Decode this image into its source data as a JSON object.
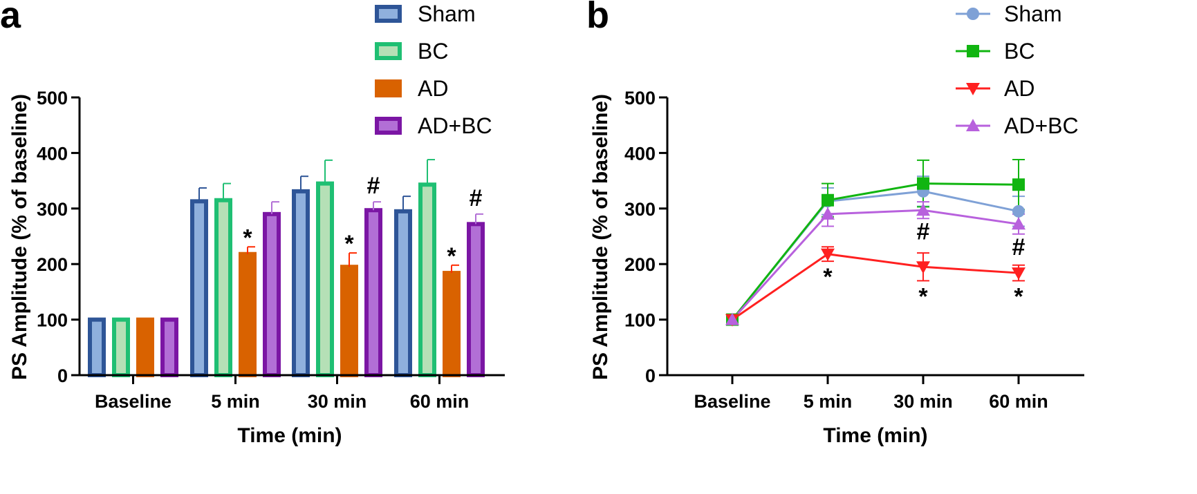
{
  "colors": {
    "sham": "#2e5597",
    "sham_light": "#8fb0dd",
    "sham_line": "#7fa1d6",
    "bc": "#1fbf73",
    "bc_light": "#b5e0b6",
    "bc_line": "#11b511",
    "ad": "#d96200",
    "ad_err": "#ff2a00",
    "ad_line": "#ff2020",
    "adbc": "#7b16a4",
    "adbc_light": "#b26fd6",
    "adbc_line": "#b861dd"
  },
  "chart_data": [
    {
      "panel": "a",
      "type": "bar",
      "categories": [
        "Baseline",
        "5 min",
        "30 min",
        "60 min"
      ],
      "xlabel": "Time (min)",
      "ylabel": "PS Amplitude (% of baseline)",
      "ylim": [
        0,
        500
      ],
      "yticks": [
        "0",
        "100",
        "200",
        "300",
        "400",
        "500"
      ],
      "legend_position": "top-right",
      "series": [
        {
          "name": "Sham",
          "values": [
            100,
            313,
            331,
            295
          ],
          "errors": [
            0,
            24,
            27,
            27
          ]
        },
        {
          "name": "BC",
          "values": [
            100,
            315,
            345,
            343
          ],
          "errors": [
            0,
            30,
            42,
            45
          ]
        },
        {
          "name": "AD",
          "values": [
            100,
            218,
            195,
            184
          ],
          "errors": [
            0,
            13,
            25,
            14
          ]
        },
        {
          "name": "AD+BC",
          "values": [
            100,
            290,
            297,
            272
          ],
          "errors": [
            0,
            22,
            15,
            18
          ]
        }
      ],
      "annotations": [
        {
          "text": "*",
          "category": "5 min",
          "series": "AD"
        },
        {
          "text": "*",
          "category": "30 min",
          "series": "AD"
        },
        {
          "text": "#",
          "category": "30 min",
          "series": "AD+BC"
        },
        {
          "text": "*",
          "category": "60 min",
          "series": "AD"
        },
        {
          "text": "#",
          "category": "60 min",
          "series": "AD+BC"
        }
      ]
    },
    {
      "panel": "b",
      "type": "line",
      "categories": [
        "Baseline",
        "5 min",
        "30 min",
        "60 min"
      ],
      "xlabel": "Time (min)",
      "ylabel": "PS Amplitude (% of baseline)",
      "ylim": [
        0,
        500
      ],
      "yticks": [
        "0",
        "100",
        "200",
        "300",
        "400",
        "500"
      ],
      "legend_position": "top-right",
      "series": [
        {
          "name": "Sham",
          "marker": "circle",
          "values": [
            100,
            313,
            331,
            295
          ],
          "errors": [
            0,
            24,
            27,
            27
          ]
        },
        {
          "name": "BC",
          "marker": "square",
          "values": [
            100,
            315,
            345,
            343
          ],
          "errors": [
            0,
            30,
            42,
            45
          ]
        },
        {
          "name": "AD",
          "marker": "triangle-down",
          "values": [
            100,
            218,
            195,
            184
          ],
          "errors": [
            0,
            13,
            25,
            14
          ]
        },
        {
          "name": "AD+BC",
          "marker": "triangle-up",
          "values": [
            100,
            290,
            297,
            272
          ],
          "errors": [
            0,
            22,
            15,
            18
          ]
        }
      ],
      "annotations": [
        {
          "text": "*",
          "category": "5 min",
          "series": "AD",
          "side": "below"
        },
        {
          "text": "*",
          "category": "30 min",
          "series": "AD",
          "side": "below"
        },
        {
          "text": "*",
          "category": "60 min",
          "series": "AD",
          "side": "below"
        },
        {
          "text": "#",
          "category": "30 min",
          "series": "AD+BC",
          "side": "below"
        },
        {
          "text": "#",
          "category": "60 min",
          "series": "AD+BC",
          "side": "below"
        }
      ]
    }
  ]
}
